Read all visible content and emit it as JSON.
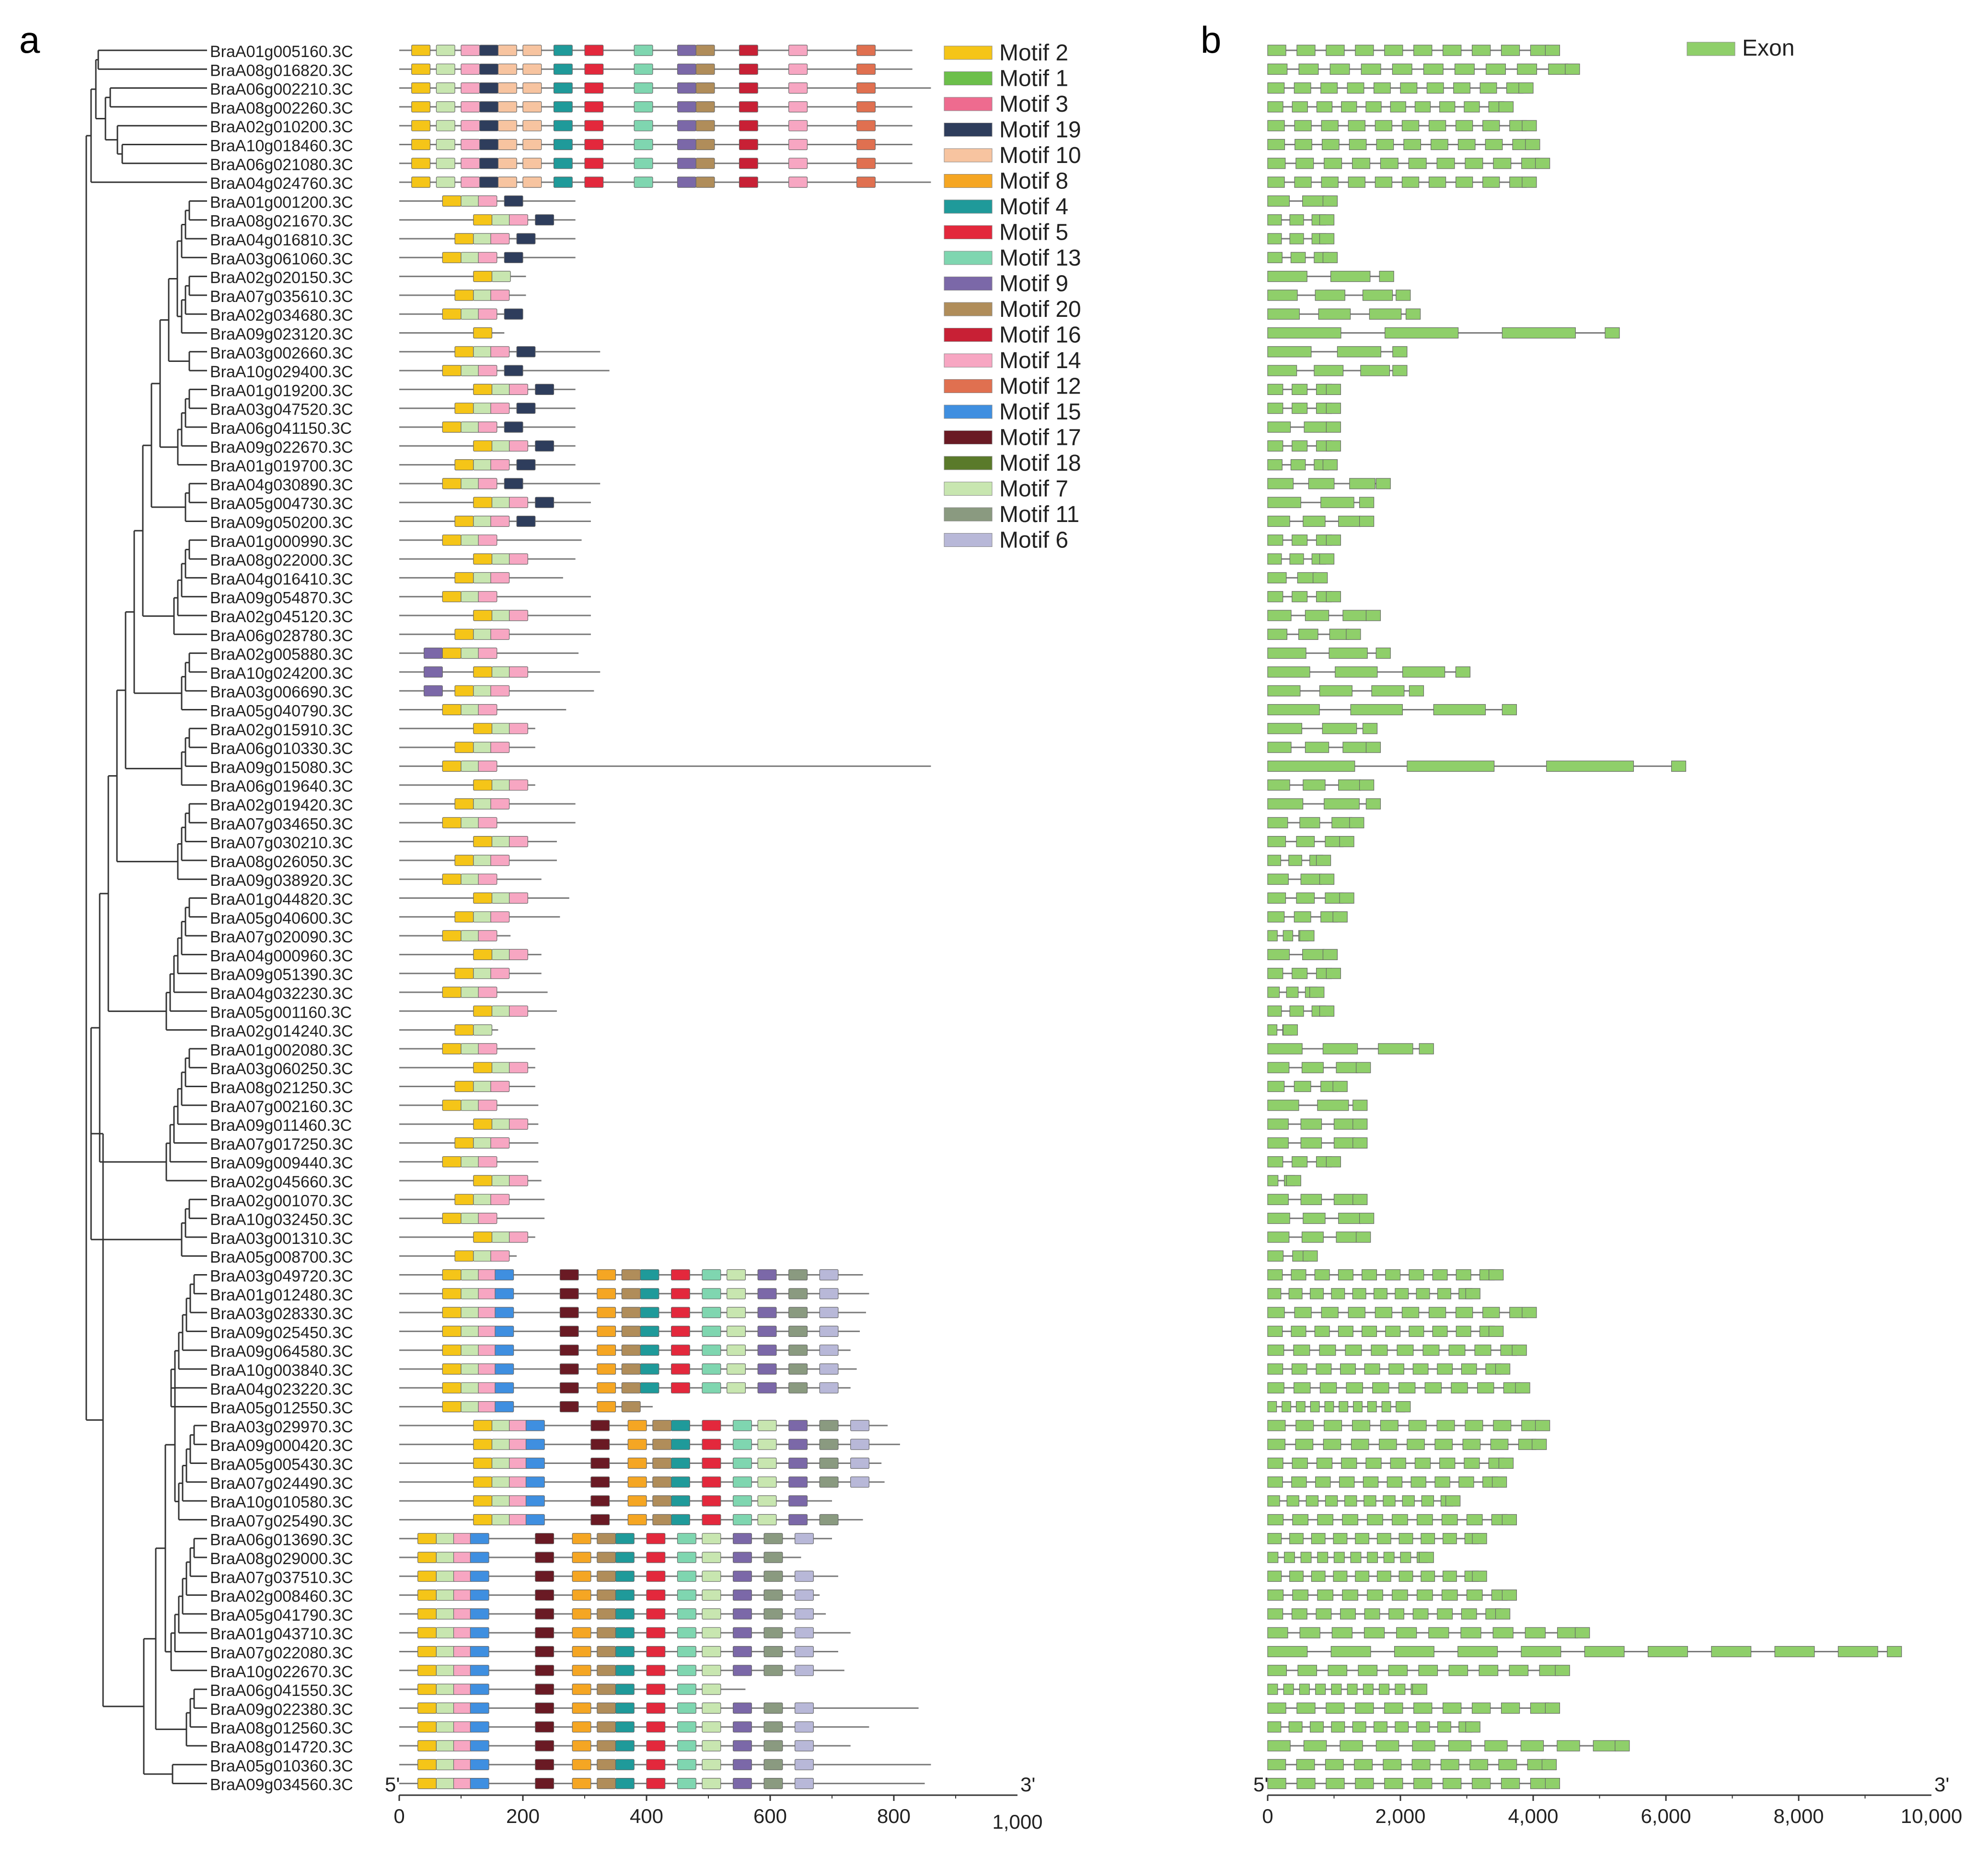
{
  "panels": {
    "a": {
      "label": "a"
    },
    "b": {
      "label": "b"
    }
  },
  "genes": [
    "BraA01g005160.3C",
    "BraA08g016820.3C",
    "BraA06g002210.3C",
    "BraA08g002260.3C",
    "BraA02g010200.3C",
    "BraA10g018460.3C",
    "BraA06g021080.3C",
    "BraA04g024760.3C",
    "BraA01g001200.3C",
    "BraA08g021670.3C",
    "BraA04g016810.3C",
    "BraA03g061060.3C",
    "BraA02g020150.3C",
    "BraA07g035610.3C",
    "BraA02g034680.3C",
    "BraA09g023120.3C",
    "BraA03g002660.3C",
    "BraA10g029400.3C",
    "BraA01g019200.3C",
    "BraA03g047520.3C",
    "BraA06g041150.3C",
    "BraA09g022670.3C",
    "BraA01g019700.3C",
    "BraA04g030890.3C",
    "BraA05g004730.3C",
    "BraA09g050200.3C",
    "BraA01g000990.3C",
    "BraA08g022000.3C",
    "BraA04g016410.3C",
    "BraA09g054870.3C",
    "BraA02g045120.3C",
    "BraA06g028780.3C",
    "BraA02g005880.3C",
    "BraA10g024200.3C",
    "BraA03g006690.3C",
    "BraA05g040790.3C",
    "BraA02g015910.3C",
    "BraA06g010330.3C",
    "BraA09g015080.3C",
    "BraA06g019640.3C",
    "BraA02g019420.3C",
    "BraA07g034650.3C",
    "BraA07g030210.3C",
    "BraA08g026050.3C",
    "BraA09g038920.3C",
    "BraA01g044820.3C",
    "BraA05g040600.3C",
    "BraA07g020090.3C",
    "BraA04g000960.3C",
    "BraA09g051390.3C",
    "BraA04g032230.3C",
    "BraA05g001160.3C",
    "BraA02g014240.3C",
    "BraA01g002080.3C",
    "BraA03g060250.3C",
    "BraA08g021250.3C",
    "BraA07g002160.3C",
    "BraA09g011460.3C",
    "BraA07g017250.3C",
    "BraA09g009440.3C",
    "BraA02g045660.3C",
    "BraA02g001070.3C",
    "BraA10g032450.3C",
    "BraA03g001310.3C",
    "BraA05g008700.3C",
    "BraA03g049720.3C",
    "BraA01g012480.3C",
    "BraA03g028330.3C",
    "BraA09g025450.3C",
    "BraA09g064580.3C",
    "BraA10g003840.3C",
    "BraA04g023220.3C",
    "BraA05g012550.3C",
    "BraA03g029970.3C",
    "BraA09g000420.3C",
    "BraA05g005430.3C",
    "BraA07g024490.3C",
    "BraA10g010580.3C",
    "BraA07g025490.3C",
    "BraA06g013690.3C",
    "BraA08g029000.3C",
    "BraA07g037510.3C",
    "BraA02g008460.3C",
    "BraA05g041790.3C",
    "BraA01g043710.3C",
    "BraA07g022080.3C",
    "BraA10g022670.3C",
    "BraA06g041550.3C",
    "BraA09g022380.3C",
    "BraA08g012560.3C",
    "BraA08g014720.3C",
    "BraA05g010360.3C",
    "BraA09g034560.3C"
  ],
  "protein_lengths": [
    830,
    830,
    860,
    830,
    830,
    830,
    830,
    860,
    285,
    285,
    285,
    285,
    205,
    205,
    200,
    170,
    325,
    340,
    285,
    285,
    285,
    285,
    285,
    325,
    310,
    310,
    295,
    285,
    265,
    310,
    310,
    310,
    290,
    325,
    315,
    270,
    220,
    220,
    860,
    220,
    285,
    285,
    255,
    255,
    230,
    275,
    260,
    180,
    230,
    230,
    240,
    255,
    160,
    220,
    220,
    220,
    225,
    225,
    225,
    225,
    230,
    235,
    235,
    220,
    190,
    750,
    760,
    755,
    745,
    730,
    740,
    730,
    410,
    790,
    810,
    780,
    785,
    700,
    750,
    700,
    650,
    710,
    680,
    690,
    730,
    710,
    720,
    560,
    840,
    760,
    730,
    860,
    850
  ],
  "motif_legend": [
    {
      "name": "Motif 2",
      "color": "#f5c518"
    },
    {
      "name": "Motif 1",
      "color": "#6cbf4a"
    },
    {
      "name": "Motif 3",
      "color": "#ee6b8f"
    },
    {
      "name": "Motif 19",
      "color": "#2e3d5c"
    },
    {
      "name": "Motif 10",
      "color": "#f7c4a0"
    },
    {
      "name": "Motif 8",
      "color": "#f5a623"
    },
    {
      "name": "Motif 4",
      "color": "#1f9a9a"
    },
    {
      "name": "Motif 5",
      "color": "#e3283c"
    },
    {
      "name": "Motif 13",
      "color": "#7fd6b0"
    },
    {
      "name": "Motif 9",
      "color": "#7b68a8"
    },
    {
      "name": "Motif 20",
      "color": "#b08d5a"
    },
    {
      "name": "Motif 16",
      "color": "#c82035"
    },
    {
      "name": "Motif 14",
      "color": "#f7a6c2"
    },
    {
      "name": "Motif 12",
      "color": "#e07050"
    },
    {
      "name": "Motif 15",
      "color": "#3f8fe0"
    },
    {
      "name": "Motif 17",
      "color": "#6a1a24"
    },
    {
      "name": "Motif 18",
      "color": "#5a7a2a"
    },
    {
      "name": "Motif 7",
      "color": "#c8e6b0"
    },
    {
      "name": "Motif 11",
      "color": "#8a9a80"
    },
    {
      "name": "Motif 6",
      "color": "#b8b8d8"
    }
  ],
  "exon_legend": {
    "name": "Exon",
    "color": "#8fcf6a"
  },
  "motif_axis": {
    "min": 0,
    "max": 1000,
    "ticks": [
      0,
      200,
      400,
      600,
      800
    ],
    "tick_labels": [
      "0",
      "200",
      "400",
      "600",
      "800"
    ],
    "end_label": "1,000",
    "start_marker": "5'",
    "end_marker": "3'"
  },
  "gene_axis": {
    "min": 0,
    "max": 10000,
    "ticks": [
      0,
      2000,
      4000,
      6000,
      8000
    ],
    "tick_labels": [
      "0",
      "2,000",
      "4,000",
      "6,000",
      "8,000"
    ],
    "end_label": "10,000",
    "start_marker": "5'",
    "end_marker": "3'"
  },
  "gene_lengths": [
    4400,
    4700,
    4000,
    3700,
    4050,
    4100,
    4250,
    4050,
    1050,
    1000,
    1000,
    1050,
    1900,
    2150,
    2300,
    5300,
    2100,
    2100,
    1100,
    1100,
    1100,
    1100,
    1050,
    1850,
    1600,
    1600,
    1100,
    1000,
    900,
    1100,
    1700,
    1400,
    1850,
    3050,
    2350,
    3750,
    1650,
    1700,
    6300,
    1600,
    1700,
    1450,
    1300,
    950,
    1000,
    1300,
    1200,
    700,
    1050,
    1100,
    850,
    1000,
    450,
    2500,
    1550,
    1200,
    1500,
    1500,
    1500,
    1100,
    500,
    1500,
    1600,
    1550,
    750,
    3550,
    3200,
    4050,
    3550,
    3900,
    3650,
    3950,
    2150,
    4250,
    4200,
    3700,
    3600,
    2900,
    3750,
    3300,
    2500,
    3300,
    3750,
    3650,
    4850,
    9550,
    4550,
    2400,
    4400,
    3200,
    5450,
    4350,
    4400
  ]
}
